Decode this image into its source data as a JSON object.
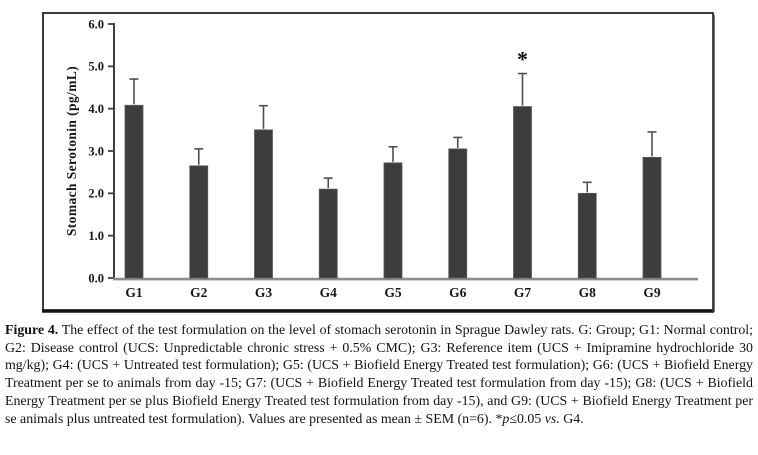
{
  "chart_data": {
    "type": "bar",
    "title": "",
    "xlabel": "",
    "ylabel": "Stomach Serotonin (pg/mL)",
    "categories": [
      "G1",
      "G2",
      "G3",
      "G4",
      "G5",
      "G6",
      "G7",
      "G8",
      "G9"
    ],
    "values": [
      4.08,
      2.65,
      3.5,
      2.1,
      2.72,
      3.05,
      4.05,
      2.0,
      2.85
    ],
    "errors_sem_upper": [
      0.62,
      0.4,
      0.57,
      0.26,
      0.38,
      0.27,
      0.78,
      0.26,
      0.6
    ],
    "significance_markers": [
      {
        "category": "G7",
        "symbol": "*"
      }
    ],
    "ylim": [
      0.0,
      6.0
    ],
    "ytick_labels": [
      "0.0",
      "1.0",
      "2.0",
      "3.0",
      "4.0",
      "5.0",
      "6.0"
    ],
    "grid": false,
    "legend": "none",
    "bar_color": "#3d3d3d",
    "bar_edge_color": "#5b5b5b",
    "y_axis_color": "#3f3f3f",
    "x_axis_color": "#8d8d8d",
    "error_bar_color": "#4f4f4f",
    "frame_color": "#1b1b1b"
  },
  "caption": {
    "label": "Figure 4.",
    "body": " The effect of the test formulation on the level of stomach serotonin in Sprague Dawley rats. G: Group; G1: Normal control; G2: Disease control (UCS: Unpredictable chronic stress + 0.5% CMC); G3: Reference item (UCS + Imipramine hydrochloride 30 mg/kg); G4: (UCS + Untreated test formulation); G5: (UCS + Biofield Energy Treated test formulation); G6: (UCS + Biofield Energy Treatment per se to animals from day -15; G7: (UCS + Biofield Energy Treated test formulation from day -15); G8: (UCS + Biofield Energy Treatment per se plus Biofield Energy Treated test formulation from day -15), and G9: (UCS + Biofield Energy Treatment per se animals plus untreated test formulation). Values are presented as mean ± SEM (n=6). ",
    "sig_star": "*",
    "sig_p": "p",
    "sig_value": "≤0.05 ",
    "sig_vs": "vs.",
    "sig_tail": " G4."
  }
}
